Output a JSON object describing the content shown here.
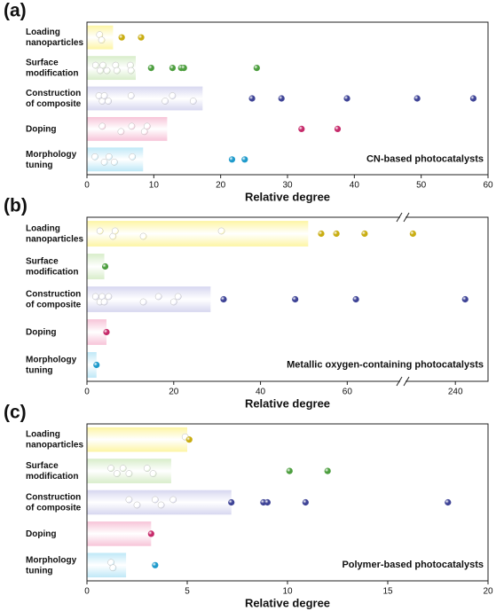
{
  "chart_data": [
    {
      "type": "bar",
      "panel_label": "(a)",
      "annotation": "CN-based photocatalysts",
      "xlabel": "Relative degree",
      "categories": [
        [
          "Loading",
          "nanoparticles"
        ],
        [
          "Surface",
          "modification"
        ],
        [
          "Construction",
          "of composite"
        ],
        [
          "Doping"
        ],
        [
          "Morphology",
          "tuning"
        ]
      ],
      "values": [
        3.9,
        7.3,
        17.3,
        12,
        8.4
      ],
      "points": [
        [
          1.9,
          2.2,
          5.2,
          8.1
        ],
        [
          1.3,
          2.0,
          2.4,
          3.0,
          4.3,
          4.5,
          6.5,
          6.6,
          9.6,
          12.8,
          14.1,
          14.5,
          25.4
        ],
        [
          1.8,
          2.3,
          2.6,
          3.2,
          6.6,
          11.7,
          12.8,
          15.9,
          24.7,
          29.1,
          38.9,
          49.4,
          57.8
        ],
        [
          2.3,
          5.1,
          6.7,
          8.6,
          9.0,
          32.1,
          37.5
        ],
        [
          1.2,
          2.6,
          3.3,
          4.1,
          6.8,
          21.7,
          23.6
        ]
      ],
      "colors": [
        "#c9ad12",
        "#4c9e3e",
        "#3e4396",
        "#c62a6a",
        "#1e9acb"
      ],
      "bar_colors": [
        "#fdf5a4",
        "#d8edca",
        "#d7d7f0",
        "#f7c4d8",
        "#bfe8f7"
      ],
      "xlim": [
        0,
        60
      ],
      "xticks": [
        0,
        10,
        20,
        30,
        40,
        50,
        60
      ]
    },
    {
      "type": "bar",
      "panel_label": "(b)",
      "annotation": "Metallic oxygen-containing photocatalysts",
      "xlabel": "Relative degree",
      "categories": [
        [
          "Loading",
          "nanoparticles"
        ],
        [
          "Surface",
          "modification"
        ],
        [
          "Construction",
          "of composite"
        ],
        [
          "Doping"
        ],
        [
          "Morphology",
          "tuning"
        ]
      ],
      "values": [
        51,
        4,
        28.5,
        4.5,
        2.2
      ],
      "points": [
        [
          3,
          6,
          6.5,
          13,
          31,
          54,
          57.5,
          64,
          227
        ],
        [
          4.2
        ],
        [
          2,
          3,
          3.5,
          4,
          5,
          13,
          16.5,
          20,
          21,
          31.5,
          48,
          62,
          243
        ],
        [
          4.5
        ],
        [
          2.2
        ]
      ],
      "colors": [
        "#c9ad12",
        "#4c9e3e",
        "#3e4396",
        "#c62a6a",
        "#1e9acb"
      ],
      "bar_colors": [
        "#fdf5a4",
        "#d8edca",
        "#d7d7f0",
        "#f7c4d8",
        "#bfe8f7"
      ],
      "xlim": [
        0,
        250
      ],
      "axis_break": [
        72,
        225
      ],
      "xticks": [
        0,
        20,
        40,
        60,
        240
      ]
    },
    {
      "type": "bar",
      "panel_label": "(c)",
      "annotation": "Polymer-based photocatalysts",
      "xlabel": "Relative degree",
      "categories": [
        [
          "Loading",
          "nanoparticles"
        ],
        [
          "Surface",
          "modification"
        ],
        [
          "Construction",
          "of composite"
        ],
        [
          "Doping"
        ],
        [
          "Morphology",
          "tuning"
        ]
      ],
      "values": [
        5,
        4.2,
        7.2,
        3.2,
        1.95
      ],
      "points": [
        [
          4.9,
          5.1
        ],
        [
          1.2,
          1.5,
          1.8,
          2.1,
          3.0,
          3.3,
          10.1,
          12.0
        ],
        [
          2.1,
          2.5,
          3.4,
          3.7,
          4.3,
          7.2,
          8.8,
          9.0,
          10.9,
          18.0
        ],
        [
          3.2
        ],
        [
          1.2,
          1.3,
          3.4
        ]
      ],
      "colors": [
        "#c9ad12",
        "#4c9e3e",
        "#3e4396",
        "#c62a6a",
        "#1e9acb"
      ],
      "bar_colors": [
        "#fdf5a4",
        "#d8edca",
        "#d7d7f0",
        "#f7c4d8",
        "#bfe8f7"
      ],
      "xlim": [
        0,
        20
      ],
      "xticks": [
        0,
        5,
        10,
        15,
        20
      ]
    }
  ]
}
